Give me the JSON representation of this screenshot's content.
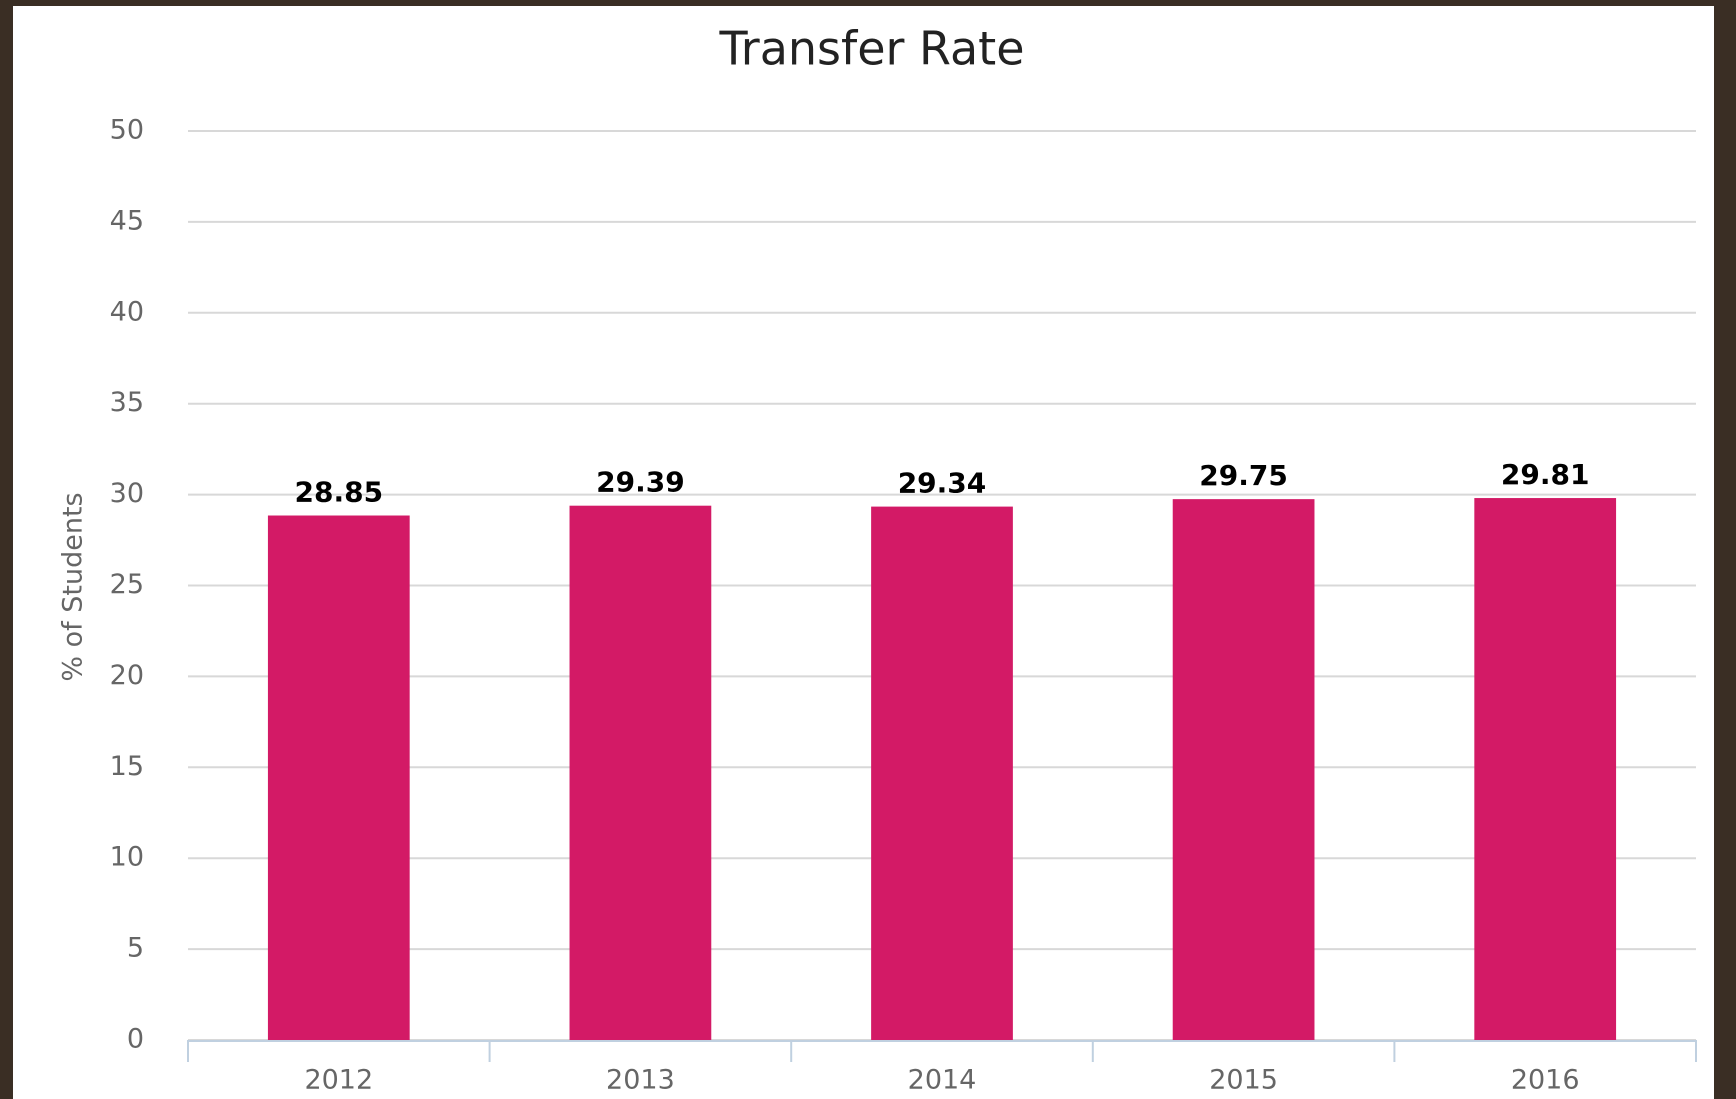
{
  "chart_data": {
    "type": "bar",
    "title": "Transfer Rate",
    "y_axis_label": "% of Students",
    "categories": [
      "2012",
      "2013",
      "2014",
      "2015",
      "2016"
    ],
    "values": [
      28.85,
      29.39,
      29.34,
      29.75,
      29.81
    ],
    "color": "#d31a66",
    "ylim": [
      0,
      50
    ],
    "yticks": [
      0,
      5,
      10,
      15,
      20,
      25,
      30,
      35,
      40,
      45,
      50
    ],
    "grid": true,
    "data_labels": true
  }
}
